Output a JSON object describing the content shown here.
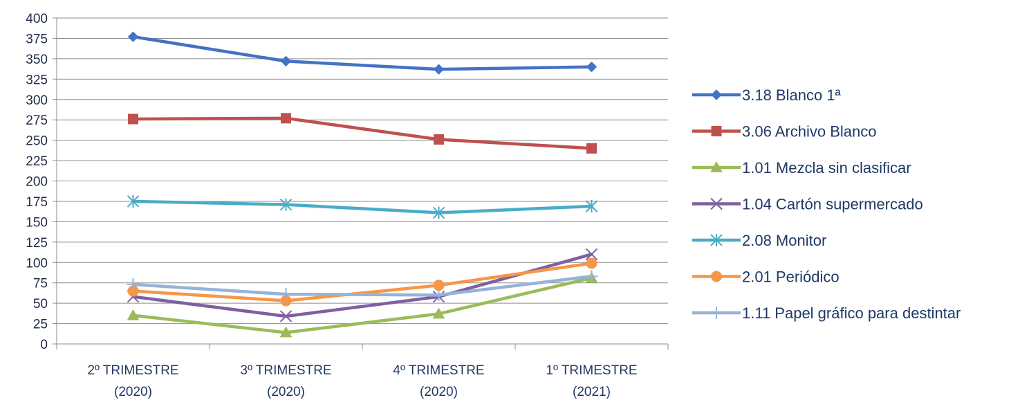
{
  "chart_data": {
    "type": "line",
    "title": "",
    "xlabel": "",
    "ylabel": "",
    "categories": [
      [
        "2º TRIMESTRE",
        "(2020)"
      ],
      [
        "3º TRIMESTRE",
        "(2020)"
      ],
      [
        "4º TRIMESTRE",
        "(2020)"
      ],
      [
        "1º TRIMESTRE",
        "(2021)"
      ]
    ],
    "ylim": [
      0,
      400
    ],
    "yticks": [
      0,
      25,
      50,
      75,
      100,
      125,
      150,
      175,
      200,
      225,
      250,
      275,
      300,
      325,
      350,
      375,
      400
    ],
    "grid": true,
    "legend_position": "right",
    "series": [
      {
        "name": "3.18 Blanco 1ª",
        "color": "#4472c4",
        "marker": "diamond",
        "values": [
          377,
          347,
          337,
          340
        ]
      },
      {
        "name": "3.06 Archivo Blanco",
        "color": "#c0504d",
        "marker": "square",
        "values": [
          276,
          277,
          251,
          240
        ]
      },
      {
        "name": "1.01 Mezcla sin clasificar",
        "color": "#9bbb59",
        "marker": "triangle",
        "values": [
          35,
          14,
          37,
          81
        ]
      },
      {
        "name": "1.04 Cartón supermercado",
        "color": "#7f5fa0",
        "marker": "x",
        "values": [
          58,
          34,
          58,
          110
        ]
      },
      {
        "name": "2.08 Monitor",
        "color": "#4bacc6",
        "marker": "asterisk",
        "values": [
          175,
          171,
          161,
          169
        ]
      },
      {
        "name": "2.01 Periódico",
        "color": "#f79646",
        "marker": "circle",
        "values": [
          65,
          53,
          72,
          99
        ]
      },
      {
        "name": "1.11 Papel gráfico para destintar",
        "color": "#95b3d7",
        "marker": "plus",
        "values": [
          73,
          61,
          60,
          83
        ]
      }
    ]
  }
}
